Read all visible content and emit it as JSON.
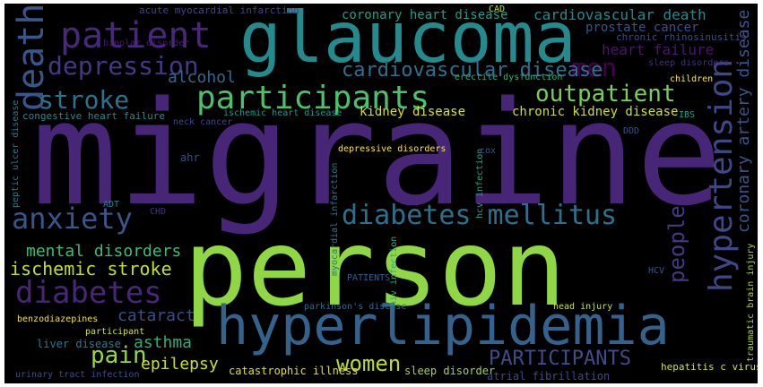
{
  "words": [
    {
      "text": "migraine",
      "color": "#482677"
    },
    {
      "text": "person",
      "color": "#8fd744"
    },
    {
      "text": "glaucoma",
      "color": "#238a8d"
    },
    {
      "text": "hyperlipidemia",
      "color": "#33638d"
    },
    {
      "text": "participants",
      "color": "#4ac16d"
    },
    {
      "text": "patient",
      "color": "#482878"
    },
    {
      "text": "death",
      "color": "#39568c"
    },
    {
      "text": "hypertension",
      "color": "#3f4788"
    },
    {
      "text": "diabetes mellitus",
      "color": "#2d708e"
    },
    {
      "text": "anxiety",
      "color": "#39558c"
    },
    {
      "text": "diabetes",
      "color": "#482677"
    },
    {
      "text": "depression",
      "color": "#453781"
    },
    {
      "text": "stroke",
      "color": "#2c728e"
    },
    {
      "text": "men",
      "color": "#440154"
    },
    {
      "text": "outpatient",
      "color": "#75d054"
    },
    {
      "text": "cardiovascular disease",
      "color": "#2d708e"
    },
    {
      "text": "coronary artery disease",
      "color": "#3a548c"
    },
    {
      "text": "people",
      "color": "#443983"
    },
    {
      "text": "pain",
      "color": "#95d840"
    },
    {
      "text": "women",
      "color": "#b8de29"
    },
    {
      "text": "PARTICIPANTS",
      "color": "#3d4d8a"
    },
    {
      "text": "ischemic stroke",
      "color": "#c2df23"
    },
    {
      "text": "mental disorders",
      "color": "#3cbc75"
    },
    {
      "text": "cataract",
      "color": "#3d4d8a"
    },
    {
      "text": "asthma",
      "color": "#29af7f"
    },
    {
      "text": "epilepsy",
      "color": "#cae11f"
    },
    {
      "text": "alcohol",
      "color": "#31688e"
    },
    {
      "text": "cardiovascular death",
      "color": "#238a8d"
    },
    {
      "text": "kidney disease",
      "color": "#d8e219"
    },
    {
      "text": "chronic kidney disease",
      "color": "#d0e11c"
    },
    {
      "text": "heart failure",
      "color": "#481769"
    },
    {
      "text": "prostate cancer",
      "color": "#3b518b"
    },
    {
      "text": "coronary heart disease",
      "color": "#1f9e89"
    },
    {
      "text": "CAD",
      "color": "#bddf26"
    },
    {
      "text": "acute myocardial infarction",
      "color": "#414487"
    },
    {
      "text": "chronic rhinosinusitis",
      "color": "#3e4a89"
    },
    {
      "text": "bipolar disorder",
      "color": "#481c6e"
    },
    {
      "text": "erectile dysfunction",
      "color": "#2db27d"
    },
    {
      "text": "sleep disorders",
      "color": "#472c7a"
    },
    {
      "text": "children",
      "color": "#fde725"
    },
    {
      "text": "congestive heart failure",
      "color": "#238a8d"
    },
    {
      "text": "ischemic heart disease",
      "color": "#1f958b"
    },
    {
      "text": "neck cancer",
      "color": "#3f4788"
    },
    {
      "text": "IBS",
      "color": "#1fa188"
    },
    {
      "text": "hcv infection",
      "color": "#20a486"
    },
    {
      "text": "cox",
      "color": "#3b518b"
    },
    {
      "text": "depressive disorders",
      "color": "#fde725"
    },
    {
      "text": "ahr",
      "color": "#3e4c8a"
    },
    {
      "text": "DDD",
      "color": "#3b528b"
    },
    {
      "text": "peptic ulcer disease",
      "color": "#2a788e"
    },
    {
      "text": "ADT",
      "color": "#25848e"
    },
    {
      "text": "CHD",
      "color": "#46327e"
    },
    {
      "text": "myocardial infarction",
      "color": "#2a788e"
    },
    {
      "text": "traumatic brain injury",
      "color": "#a5db36"
    },
    {
      "text": "HCV",
      "color": "#3a548c"
    },
    {
      "text": "hiv infection",
      "color": "#26ad81"
    },
    {
      "text": "PATIENTS",
      "color": "#35608d"
    },
    {
      "text": "parkinson's disease",
      "color": "#2f6c8e"
    },
    {
      "text": "benzodiazepines",
      "color": "#f1e51d"
    },
    {
      "text": "participant",
      "color": "#d5e21a"
    },
    {
      "text": "head injury",
      "color": "#cae11f"
    },
    {
      "text": "liver disease",
      "color": "#297b8e"
    },
    {
      "text": "catastrophic illness",
      "color": "#dde318"
    },
    {
      "text": "sleep disorder",
      "color": "#a2da37"
    },
    {
      "text": "atrial fibrillation",
      "color": "#3f4889"
    },
    {
      "text": "hepatitis c virus",
      "color": "#d2e21b"
    },
    {
      "text": "urinary tract infection",
      "color": "#3b518b"
    }
  ]
}
